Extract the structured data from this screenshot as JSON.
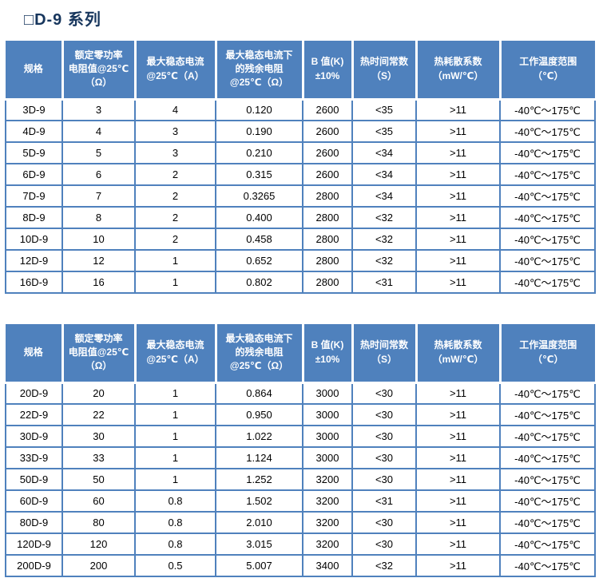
{
  "page": {
    "title": "□D-9  系列"
  },
  "colors": {
    "header_bg": "#4f81bd",
    "border_blue": "#4f81bd",
    "title_color": "#17365d"
  },
  "shared_headers": [
    "规格",
    "额定零功率\n电阻值@25℃\n（Ω）",
    "最大稳态电流\n@25℃（A）",
    "最大稳态电流下\n的残余电阻\n@25℃（Ω）",
    "B 值(K)\n±10%",
    "热时间常数\n（S）",
    "热耗散系数\n（mW/℃）",
    "工作温度范围\n（℃）"
  ],
  "tables": [
    {
      "name": "D-9 series specifications, part 1",
      "headers": [
        "规格",
        "额定零功率\n电阻值@25℃\n（Ω）",
        "最大稳态电流\n@25℃（A）",
        "最大稳态电流下\n的残余电阻\n@25℃（Ω）",
        "B 值(K)\n±10%",
        "热时间常数\n（S）",
        "热耗散系数\n（mW/℃）",
        "工作温度范围\n（℃）"
      ],
      "rows": [
        [
          "3D-9",
          "3",
          "4",
          "0.120",
          "2600",
          "<35",
          ">11",
          "-40℃～175℃"
        ],
        [
          "4D-9",
          "4",
          "3",
          "0.190",
          "2600",
          "<35",
          ">11",
          "-40℃～175℃"
        ],
        [
          "5D-9",
          "5",
          "3",
          "0.210",
          "2600",
          "<34",
          ">11",
          "-40℃～175℃"
        ],
        [
          "6D-9",
          "6",
          "2",
          "0.315",
          "2600",
          "<34",
          ">11",
          "-40℃～175℃"
        ],
        [
          "7D-9",
          "7",
          "2",
          "0.3265",
          "2800",
          "<34",
          ">11",
          "-40℃～175℃"
        ],
        [
          "8D-9",
          "8",
          "2",
          "0.400",
          "2800",
          "<32",
          ">11",
          "-40℃～175℃"
        ],
        [
          "10D-9",
          "10",
          "2",
          "0.458",
          "2800",
          "<32",
          ">11",
          "-40℃～175℃"
        ],
        [
          "12D-9",
          "12",
          "1",
          "0.652",
          "2800",
          "<32",
          ">11",
          "-40℃～175℃"
        ],
        [
          "16D-9",
          "16",
          "1",
          "0.802",
          "2800",
          "<31",
          ">11",
          "-40℃～175℃"
        ]
      ]
    },
    {
      "name": "D-9 series specifications, part 2",
      "headers": [
        "规格",
        "额定零功率\n电阻值@25℃\n（Ω）",
        "最大稳态电流\n@25℃（A）",
        "最大稳态电流下\n的残余电阻\n@25℃（Ω）",
        "B 值(K)\n±10%",
        "热时间常数\n（S）",
        "热耗散系数\n（mW/℃）",
        "工作温度范围\n（℃）"
      ],
      "rows": [
        [
          "20D-9",
          "20",
          "1",
          "0.864",
          "3000",
          "<30",
          ">11",
          "-40℃～175℃"
        ],
        [
          "22D-9",
          "22",
          "1",
          "0.950",
          "3000",
          "<30",
          ">11",
          "-40℃～175℃"
        ],
        [
          "30D-9",
          "30",
          "1",
          "1.022",
          "3000",
          "<30",
          ">11",
          "-40℃～175℃"
        ],
        [
          "33D-9",
          "33",
          "1",
          "1.124",
          "3000",
          "<30",
          ">11",
          "-40℃～175℃"
        ],
        [
          "50D-9",
          "50",
          "1",
          "1.252",
          "3200",
          "<30",
          ">11",
          "-40℃～175℃"
        ],
        [
          "60D-9",
          "60",
          "0.8",
          "1.502",
          "3200",
          "<31",
          ">11",
          "-40℃～175℃"
        ],
        [
          "80D-9",
          "80",
          "0.8",
          "2.010",
          "3200",
          "<30",
          ">11",
          "-40℃～175℃"
        ],
        [
          "120D-9",
          "120",
          "0.8",
          "3.015",
          "3200",
          "<30",
          ">11",
          "-40℃～175℃"
        ],
        [
          "200D-9",
          "200",
          "0.5",
          "5.007",
          "3400",
          "<32",
          ">11",
          "-40℃～175℃"
        ]
      ]
    }
  ]
}
